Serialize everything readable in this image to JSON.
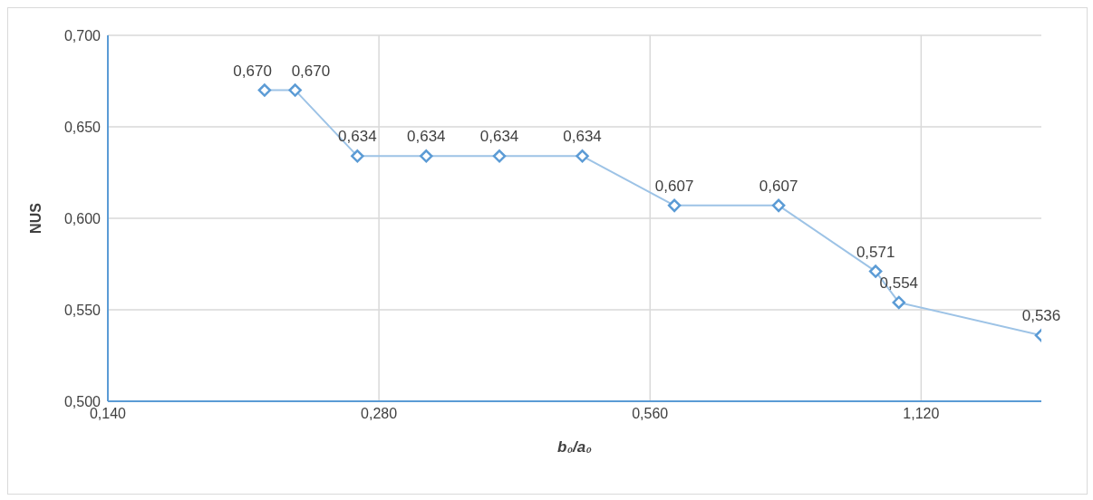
{
  "chart_data": {
    "type": "line",
    "xlabel": "b₀/a₀",
    "ylabel": "NUS",
    "x": [
      0.209,
      0.226,
      0.265,
      0.316,
      0.381,
      0.471,
      0.596,
      0.778,
      0.997,
      1.058,
      1.523
    ],
    "series": [
      {
        "color": "#5b9bd5",
        "values": [
          0.67,
          0.67,
          0.634,
          0.634,
          0.634,
          0.634,
          0.607,
          0.607,
          0.571,
          0.554,
          0.536
        ],
        "value_labels": [
          "0,670",
          "0,670",
          "0,634",
          "0,634",
          "0,634",
          "0,634",
          "0,607",
          "0,607",
          "0,571",
          "0,554",
          "0,536"
        ]
      }
    ],
    "log": "x",
    "xlim": [
      0.14,
      1.523
    ],
    "xticks": [
      {
        "value": 0.14,
        "label": "0,140"
      },
      {
        "value": 0.28,
        "label": "0,280"
      },
      {
        "value": 0.56,
        "label": "0,560"
      },
      {
        "value": 1.12,
        "label": "1,120"
      }
    ],
    "ylim": [
      0.5,
      0.7
    ],
    "yticks": [
      {
        "value": 0.5,
        "label": "0,500"
      },
      {
        "value": 0.55,
        "label": "0,550"
      },
      {
        "value": 0.6,
        "label": "0,600"
      },
      {
        "value": 0.65,
        "label": "0,650"
      },
      {
        "value": 0.7,
        "label": "0,700"
      }
    ],
    "grid": true,
    "marker": "diamond",
    "line_style": "solid",
    "legend": false
  }
}
